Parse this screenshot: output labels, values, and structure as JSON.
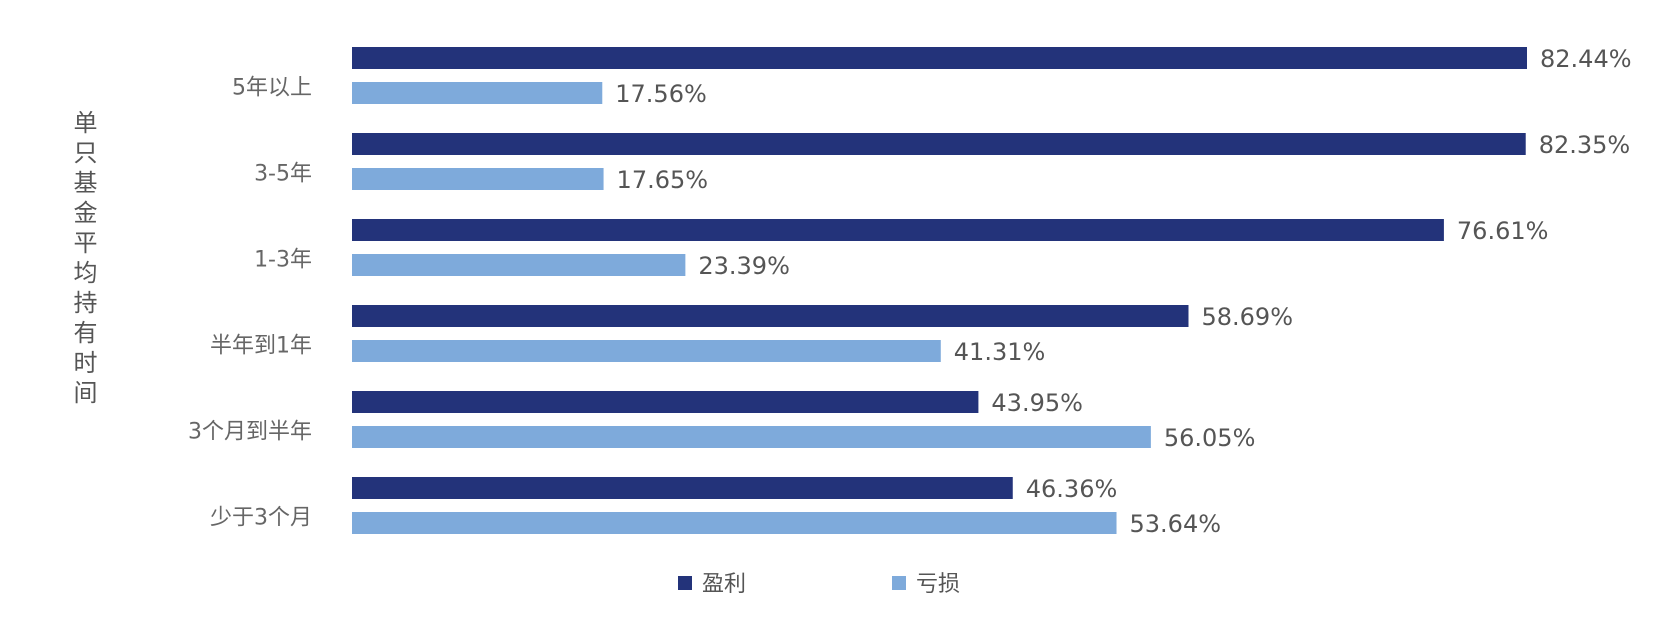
{
  "chart_data": {
    "type": "bar",
    "orientation": "horizontal",
    "title": "",
    "ylabel": "单只基金平均持有时间",
    "xlabel": "",
    "categories": [
      "5年以上",
      "3-5年",
      "1-3年",
      "半年到1年",
      "3个月到半年",
      "少于3个月"
    ],
    "series": [
      {
        "name": "盈利",
        "color": "#23337a",
        "values": [
          82.44,
          82.35,
          76.61,
          58.69,
          43.95,
          46.36
        ],
        "labels": [
          "82.44%",
          "82.35%",
          "76.61%",
          "58.69%",
          "43.95%",
          "46.36%"
        ]
      },
      {
        "name": "亏损",
        "color": "#7eaadb",
        "values": [
          17.56,
          17.65,
          23.39,
          41.31,
          56.05,
          53.64
        ],
        "labels": [
          "17.56%",
          "17.65%",
          "23.39%",
          "41.31%",
          "56.05%",
          "53.64%"
        ]
      }
    ],
    "xlim": [
      0,
      90
    ],
    "grid": false,
    "legend_position": "bottom"
  }
}
